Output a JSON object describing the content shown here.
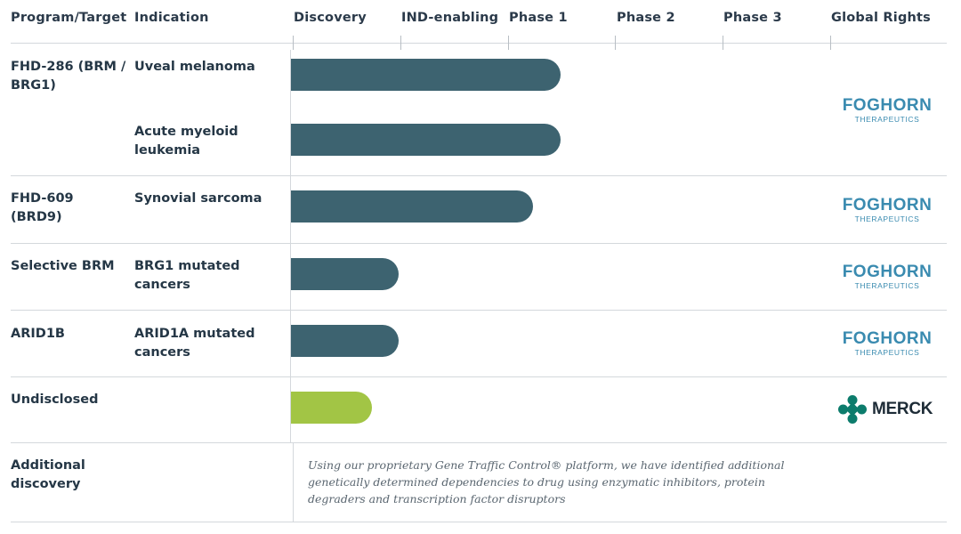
{
  "header": {
    "program": "Program/Target",
    "indication": "Indication",
    "rights": "Global Rights"
  },
  "chart_data": {
    "type": "bar",
    "orientation": "horizontal",
    "stages": [
      "Discovery",
      "IND-enabling",
      "Phase 1",
      "Phase 2",
      "Phase 3"
    ],
    "progress_unit": "stage columns completed (Discovery starts at 0)",
    "bars": [
      {
        "program": "FHD-286 (BRM / BRG1)",
        "indication": "Uveal melanoma",
        "progress": 2.5,
        "color": "#3d6370"
      },
      {
        "program": "",
        "indication": "Acute myeloid leukemia",
        "progress": 2.5,
        "color": "#3d6370"
      },
      {
        "program": "FHD-609 (BRD9)",
        "indication": "Synovial sarcoma",
        "progress": 2.25,
        "color": "#3d6370"
      },
      {
        "program": "Selective BRM",
        "indication": "BRG1 mutated cancers",
        "progress": 1.0,
        "color": "#3d6370"
      },
      {
        "program": "ARID1B",
        "indication": "ARID1A mutated cancers",
        "progress": 1.0,
        "color": "#3d6370"
      },
      {
        "program": "Undisclosed",
        "indication": "",
        "progress": 0.75,
        "color": "#a2c545"
      }
    ]
  },
  "rights": {
    "foghorn_name": "FOGHORN",
    "foghorn_sub": "THERAPEUTICS",
    "merck_name": "MERCK"
  },
  "additional": {
    "label": "Additional discovery",
    "note": "Using our proprietary Gene Traffic Control® platform, we have identified additional genetically determined dependencies to drug using enzymatic inhibitors, protein degraders and transcription factor disruptors"
  },
  "colors": {
    "bar_clinical": "#3d6370",
    "bar_partnered": "#a2c545",
    "foghorn_blue": "#3a8bb0",
    "merck_teal": "#0c7c6c"
  }
}
